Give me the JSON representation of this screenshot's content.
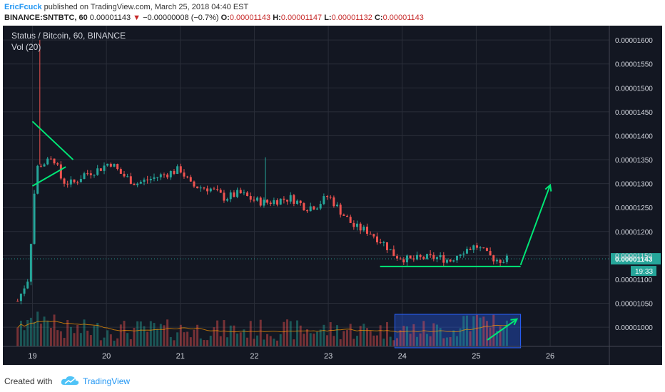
{
  "header": {
    "author": "EricFcuck",
    "published": "published on TradingView.com, March 25, 2018 04:40 EST",
    "symbol_line": "BINANCE:SNTBTC, 60",
    "last": "0.00001143",
    "change": "−0.00000008 (−0.7%)",
    "o_label": "O:",
    "o_value": "0.00001143",
    "h_label": "H:",
    "h_value": "0.00001147",
    "l_label": "L:",
    "l_value": "0.00001132",
    "c_label": "C:",
    "c_value": "0.00001143"
  },
  "chart_title": "Status / Bitcoin, 60, BINANCE",
  "vol_label": "Vol (20)",
  "price_tag": "0.00001143",
  "countdown": "19:33",
  "footer": {
    "created_with": "Created with",
    "brand": "TradingView"
  },
  "colors": {
    "up": "#26a69a",
    "down": "#ef5350",
    "drawing": "#00e676",
    "background": "#131722",
    "grid": "#2a2e39",
    "box": "#2962ff"
  },
  "chart_data": {
    "type": "candlestick",
    "title": "Status / Bitcoin, 60, BINANCE",
    "interval": "60",
    "y_ticks": [
      "0.00001600",
      "0.00001550",
      "0.00001500",
      "0.00001450",
      "0.00001400",
      "0.00001350",
      "0.00001300",
      "0.00001250",
      "0.00001200",
      "0.00001150",
      "0.00001100",
      "0.00001050",
      "0.00001000"
    ],
    "x_ticks": [
      "19",
      "20",
      "21",
      "22",
      "23",
      "24",
      "25",
      "26"
    ],
    "ylim": [
      9.6e-06,
      1.63e-05
    ],
    "xlim": [
      18.6,
      26.8
    ],
    "last_price": 1.143e-05,
    "close_path": [
      [
        18.8,
        1.055e-05
      ],
      [
        18.95,
        1.105e-05
      ],
      [
        19.0,
        1.23e-05
      ],
      [
        19.05,
        1.33e-05
      ],
      [
        19.1,
        1.34e-05
      ],
      [
        19.2,
        1.345e-05
      ],
      [
        19.3,
        1.35e-05
      ],
      [
        19.4,
        1.305e-05
      ],
      [
        19.55,
        1.3e-05
      ],
      [
        19.7,
        1.32e-05
      ],
      [
        19.9,
        1.33e-05
      ],
      [
        20.05,
        1.345e-05
      ],
      [
        20.2,
        1.32e-05
      ],
      [
        20.4,
        1.3e-05
      ],
      [
        20.6,
        1.31e-05
      ],
      [
        20.8,
        1.32e-05
      ],
      [
        21.0,
        1.33e-05
      ],
      [
        21.15,
        1.295e-05
      ],
      [
        21.4,
        1.29e-05
      ],
      [
        21.6,
        1.27e-05
      ],
      [
        21.8,
        1.28e-05
      ],
      [
        22.0,
        1.265e-05
      ],
      [
        22.15,
        1.26e-05
      ],
      [
        22.3,
        1.265e-05
      ],
      [
        22.5,
        1.27e-05
      ],
      [
        22.7,
        1.25e-05
      ],
      [
        22.85,
        1.255e-05
      ],
      [
        23.0,
        1.275e-05
      ],
      [
        23.15,
        1.245e-05
      ],
      [
        23.35,
        1.21e-05
      ],
      [
        23.55,
        1.2e-05
      ],
      [
        23.75,
        1.175e-05
      ],
      [
        23.9,
        1.15e-05
      ],
      [
        24.1,
        1.14e-05
      ],
      [
        24.3,
        1.145e-05
      ],
      [
        24.5,
        1.145e-05
      ],
      [
        24.65,
        1.14e-05
      ],
      [
        24.8,
        1.16e-05
      ],
      [
        25.0,
        1.17e-05
      ],
      [
        25.15,
        1.15e-05
      ],
      [
        25.3,
        1.14e-05
      ],
      [
        25.45,
        1.143e-05
      ]
    ],
    "spike_highs": [
      [
        19.1,
        1.6e-05
      ],
      [
        22.15,
        1.355e-05
      ]
    ],
    "annotations": {
      "triangle": [
        [
          19.0,
          1.43e-05
        ],
        [
          19.55,
          1.35e-05
        ],
        [
          19.0,
          1.295e-05
        ],
        [
          19.45,
          1.335e-05
        ]
      ],
      "support_line": [
        [
          23.7,
          1.127e-05
        ],
        [
          25.6,
          1.127e-05
        ]
      ],
      "arrow_up": [
        [
          25.6,
          1.13e-05
        ],
        [
          26.0,
          1.297e-05
        ]
      ],
      "volume_box": {
        "x": [
          23.9,
          25.6
        ]
      },
      "volume_arrow": [
        [
          25.15,
          0.2
        ],
        [
          25.55,
          0.85
        ]
      ]
    }
  }
}
